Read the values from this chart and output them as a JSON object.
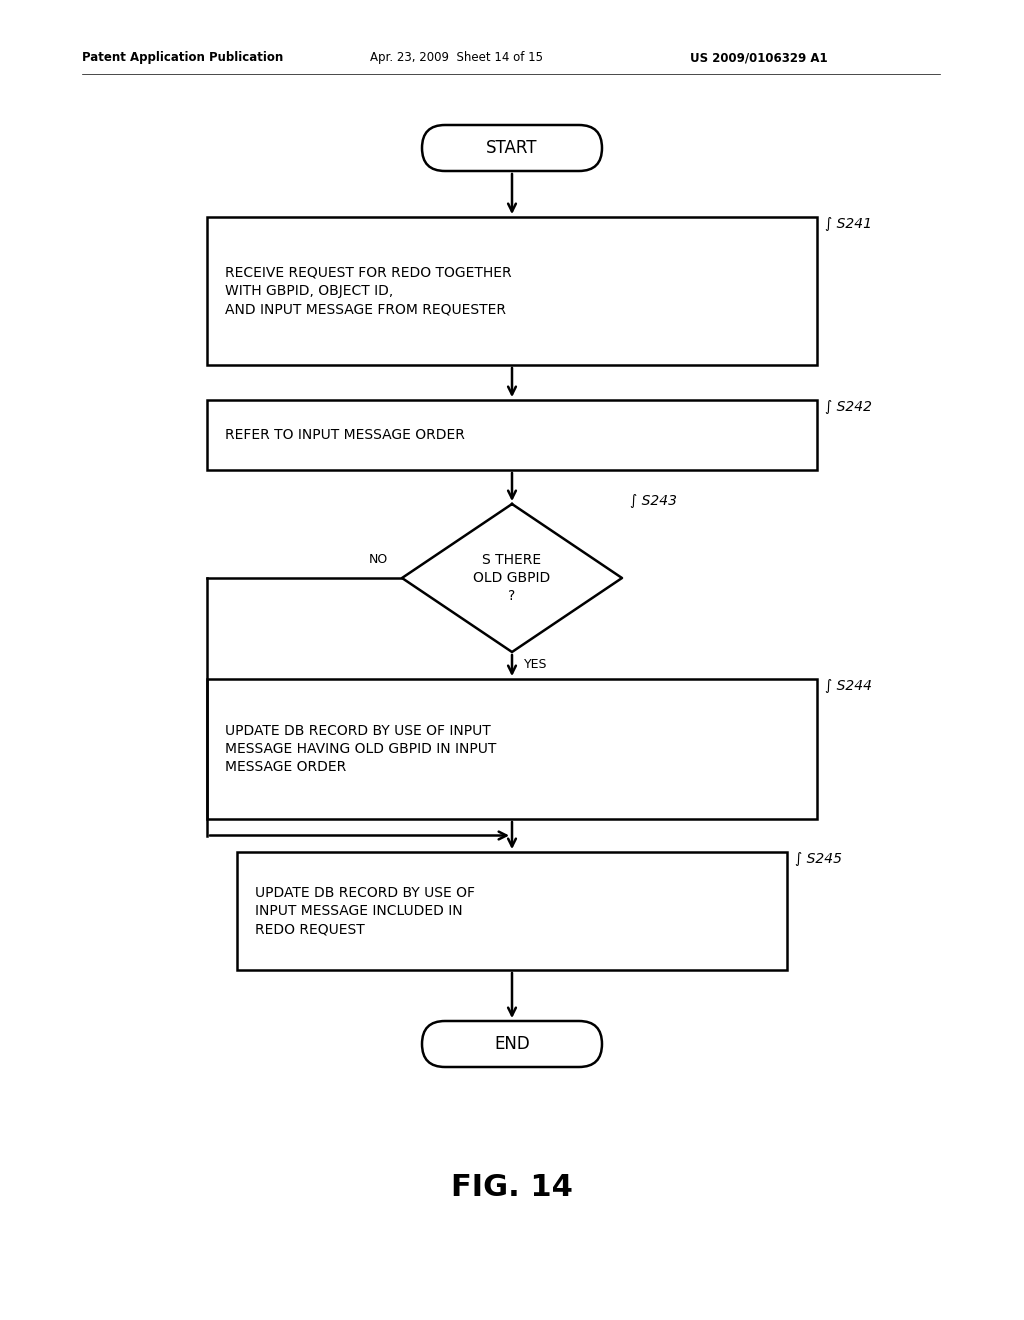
{
  "bg_color": "#ffffff",
  "header_left": "Patent Application Publication",
  "header_mid": "Apr. 23, 2009  Sheet 14 of 15",
  "header_right": "US 2009/0106329 A1",
  "fig_label": "FIG. 14",
  "start_label": "START",
  "end_label": "END",
  "s241_text": "RECEIVE REQUEST FOR REDO TOGETHER\nWITH GBPID, OBJECT ID,\nAND INPUT MESSAGE FROM REQUESTER",
  "s241_tag": "S241",
  "s242_text": "REFER TO INPUT MESSAGE ORDER",
  "s242_tag": "S242",
  "s243_text": "S THERE\nOLD GBPID\n?",
  "s243_tag": "S243",
  "s244_text": "UPDATE DB RECORD BY USE OF INPUT\nMESSAGE HAVING OLD GBPID IN INPUT\nMESSAGE ORDER",
  "s244_tag": "S244",
  "s245_text": "UPDATE DB RECORD BY USE OF\nINPUT MESSAGE INCLUDED IN\nREDO REQUEST",
  "s245_tag": "S245",
  "yes_label": "YES",
  "no_label": "NO",
  "font_size_box": 10,
  "font_size_tag": 10,
  "font_size_header": 8.5,
  "font_size_fig": 22,
  "lw": 1.8
}
